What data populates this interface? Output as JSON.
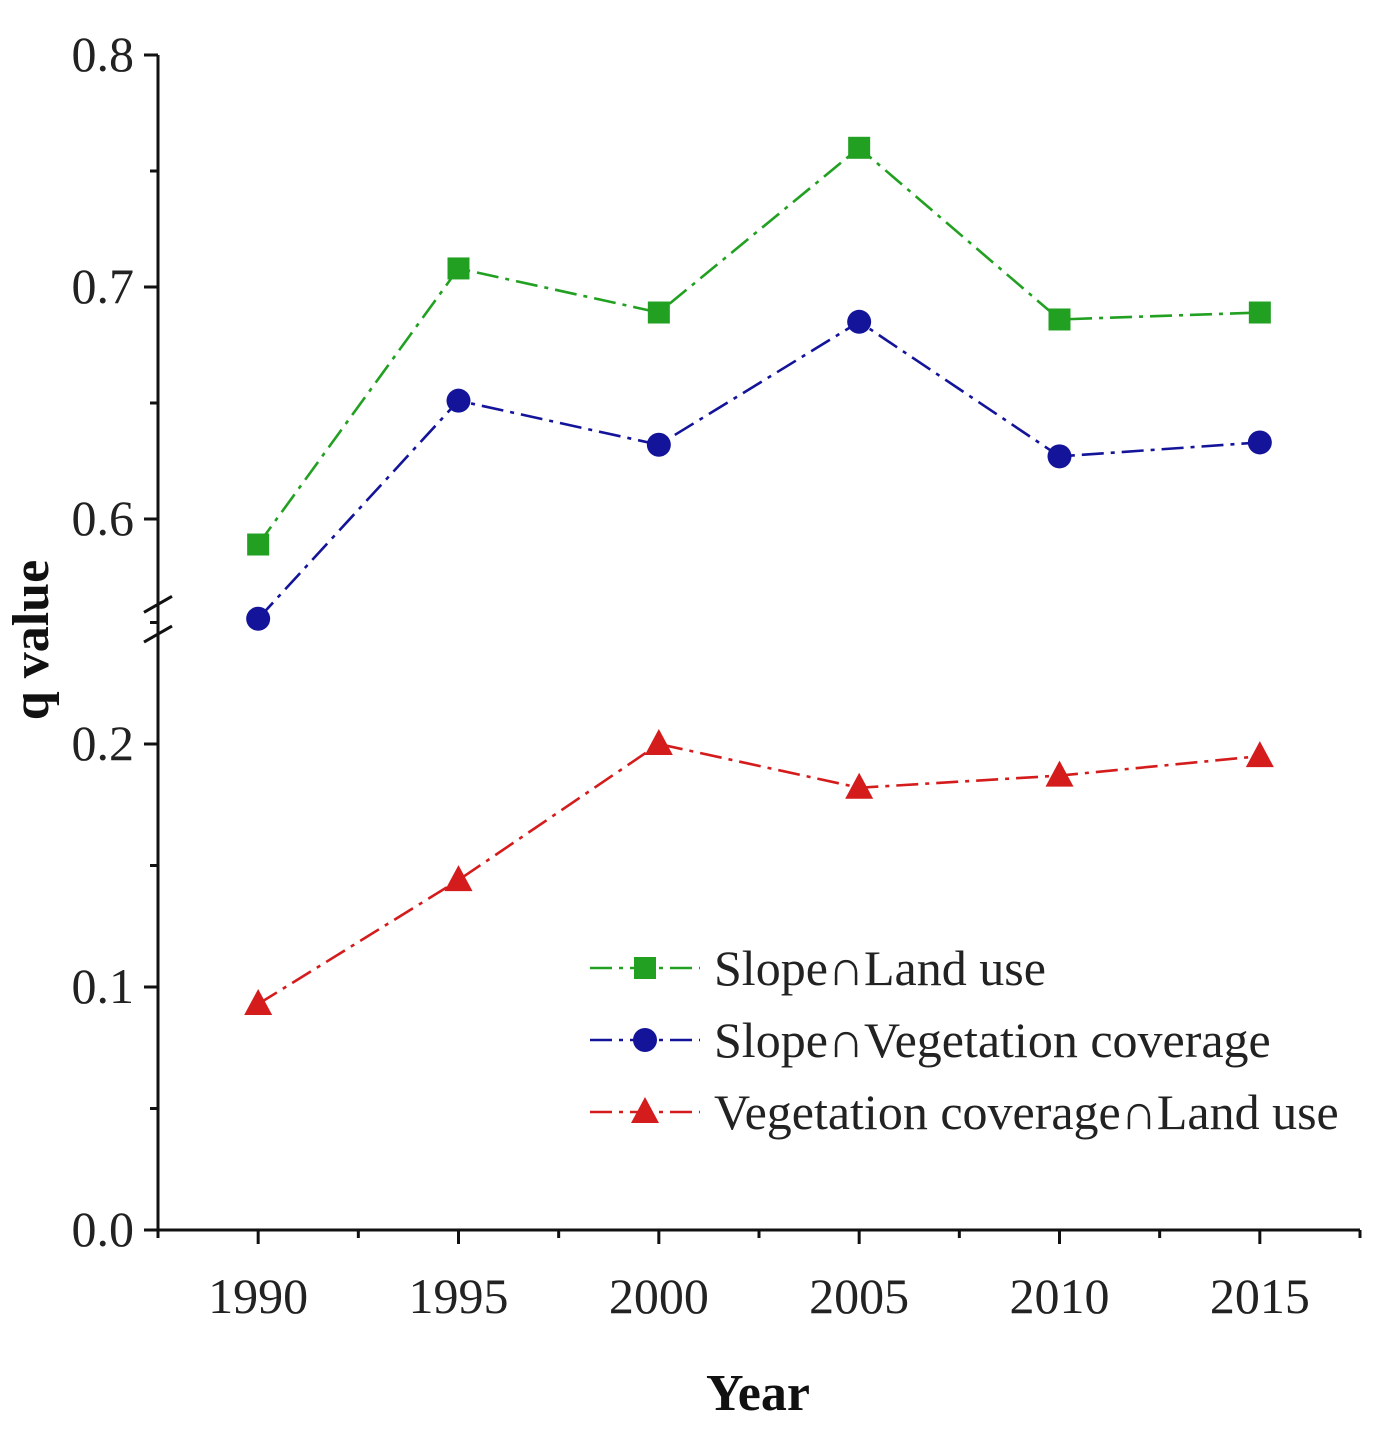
{
  "chart_data": {
    "type": "line",
    "title": "",
    "xlabel": "Year",
    "ylabel": "q value",
    "categories": [
      1990,
      1995,
      2000,
      2005,
      2010,
      2015
    ],
    "xlim": [
      1987.5,
      2017.5
    ],
    "y_axis_break": {
      "lower_range": [
        0.0,
        0.255
      ],
      "upper_range": [
        0.553,
        0.8
      ]
    },
    "yticks": [
      {
        "value": 0.8,
        "label": "0.8"
      },
      {
        "value": 0.7,
        "label": "0.7"
      },
      {
        "value": 0.6,
        "label": "0.6"
      },
      {
        "value": 0.2,
        "label": "0.2"
      },
      {
        "value": 0.1,
        "label": "0.1"
      },
      {
        "value": 0.0,
        "label": "0.0"
      }
    ],
    "series": [
      {
        "name": "Slope∩Land use",
        "marker": "square",
        "color": "#22a022",
        "values": [
          0.589,
          0.708,
          0.689,
          0.76,
          0.686,
          0.689
        ]
      },
      {
        "name": "Slope∩Vegetation coverage",
        "marker": "circle",
        "color": "#14149a",
        "values": [
          0.557,
          0.651,
          0.632,
          0.685,
          0.627,
          0.633
        ]
      },
      {
        "name": "Vegetation coverage∩Land use",
        "marker": "triangle",
        "color": "#d41c1c",
        "values": [
          0.093,
          0.144,
          0.2,
          0.182,
          0.187,
          0.195
        ]
      }
    ],
    "grid": false,
    "legend_position": "bottom-right"
  }
}
